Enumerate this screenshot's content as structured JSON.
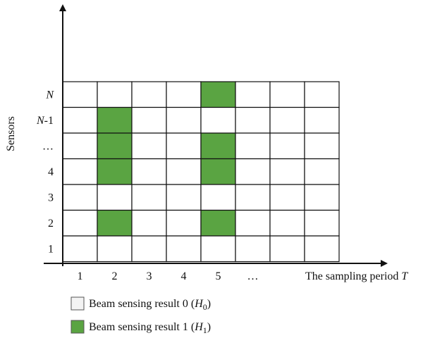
{
  "y_axis_title": "Sensors",
  "x_axis_title": {
    "prefix": "The sampling period ",
    "var": "T"
  },
  "row_labels": [
    {
      "main": "N",
      "suffix": "",
      "italic": true
    },
    {
      "main": "N",
      "suffix": "-1",
      "italic": true
    },
    {
      "main": "…",
      "suffix": "",
      "italic": false
    },
    {
      "main": "4",
      "suffix": "",
      "italic": false
    },
    {
      "main": "3",
      "suffix": "",
      "italic": false
    },
    {
      "main": "2",
      "suffix": "",
      "italic": false
    },
    {
      "main": "1",
      "suffix": "",
      "italic": false
    }
  ],
  "column_labels": [
    "1",
    "2",
    "3",
    "4",
    "5",
    "…"
  ],
  "grid": [
    [
      0,
      0,
      0,
      0,
      1,
      0,
      0,
      0
    ],
    [
      0,
      1,
      0,
      0,
      0,
      0,
      0,
      0
    ],
    [
      0,
      1,
      0,
      0,
      1,
      0,
      0,
      0
    ],
    [
      0,
      1,
      0,
      0,
      1,
      0,
      0,
      0
    ],
    [
      0,
      0,
      0,
      0,
      0,
      0,
      0,
      0
    ],
    [
      0,
      1,
      0,
      0,
      1,
      0,
      0,
      0
    ],
    [
      0,
      0,
      0,
      0,
      0,
      0,
      0,
      0
    ]
  ],
  "colors": {
    "filled": "#5aa442",
    "empty": "#ffffff",
    "legend_empty": "#f3f3f3",
    "line": "#111111"
  },
  "legend": [
    {
      "text": "Beam sensing result 0 (",
      "var": "H",
      "sub": "0",
      "close": ")",
      "value": 0
    },
    {
      "text": "Beam sensing result 1 (",
      "var": "H",
      "sub": "1",
      "close": ")",
      "value": 1
    }
  ]
}
